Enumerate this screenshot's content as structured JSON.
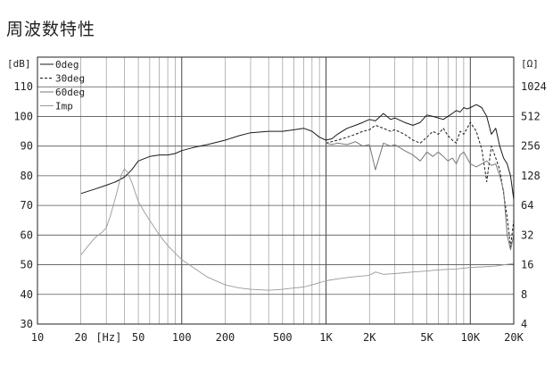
{
  "title": "周波数特性",
  "chart_data": {
    "type": "line",
    "title": "周波数特性",
    "x_scale": "log",
    "xlim": [
      10,
      20000
    ],
    "x_ticks": [
      10,
      20,
      50,
      100,
      200,
      500,
      1000,
      2000,
      5000,
      10000,
      20000
    ],
    "x_tick_labels": [
      "10",
      "20",
      "50",
      "100",
      "200",
      "500",
      "1K",
      "2K",
      "5K",
      "10K",
      "20K"
    ],
    "xlabel": "[Hz]",
    "ylabel_left": "[dB]",
    "ylim": [
      30,
      120
    ],
    "y_ticks": [
      30,
      40,
      50,
      60,
      70,
      80,
      90,
      100,
      110
    ],
    "ylabel_right": "[Ω]",
    "y2_scale": "log",
    "y2_ticks": [
      4,
      8,
      16,
      32,
      64,
      128,
      256,
      512,
      1024
    ],
    "grid": true,
    "legend_position": "top-left",
    "series": [
      {
        "name": "0deg",
        "axis": "left",
        "style": "solid",
        "color": "#1a1a1a",
        "x": [
          20,
          25,
          30,
          35,
          40,
          45,
          50,
          60,
          70,
          80,
          90,
          100,
          120,
          150,
          200,
          250,
          300,
          400,
          500,
          600,
          700,
          800,
          900,
          1000,
          1100,
          1200,
          1400,
          1600,
          1800,
          2000,
          2200,
          2500,
          2800,
          3000,
          3500,
          4000,
          4500,
          5000,
          5500,
          6000,
          6500,
          7000,
          7500,
          8000,
          8500,
          9000,
          9500,
          10000,
          11000,
          12000,
          13000,
          14000,
          15000,
          16000,
          17000,
          18000,
          19000,
          20000
        ],
        "y": [
          74,
          75.5,
          76.8,
          78,
          79.5,
          82,
          85,
          86.5,
          87,
          87,
          87.5,
          88.5,
          89.5,
          90.5,
          92,
          93.5,
          94.5,
          95,
          95,
          95.5,
          96,
          95,
          93,
          92,
          92.5,
          94,
          96,
          97,
          98,
          99,
          98.5,
          101,
          99,
          99.5,
          98,
          97,
          98,
          100.5,
          100,
          99.5,
          99,
          100,
          101,
          102,
          101.5,
          103,
          102.5,
          103,
          104,
          103,
          100,
          94,
          96,
          90,
          86,
          84,
          80,
          72
        ]
      },
      {
        "name": "30deg",
        "axis": "left",
        "style": "dashed",
        "color": "#1a1a1a",
        "x": [
          1000,
          1100,
          1200,
          1400,
          1600,
          1800,
          2000,
          2200,
          2500,
          2800,
          3000,
          3500,
          4000,
          4500,
          5000,
          5500,
          6000,
          6500,
          7000,
          7500,
          8000,
          8500,
          9000,
          9500,
          10000,
          11000,
          12000,
          13000,
          14000,
          15000,
          16000,
          17000,
          18000,
          19000,
          20000
        ],
        "y": [
          91,
          91.5,
          92,
          93,
          94,
          95,
          95.5,
          97,
          96,
          95,
          95.5,
          94,
          92,
          91,
          93,
          95,
          94,
          96,
          93.5,
          92,
          91,
          95,
          94,
          96,
          98,
          95,
          89,
          78,
          90,
          86,
          82,
          74,
          66,
          56,
          65
        ]
      },
      {
        "name": "60deg",
        "axis": "left",
        "style": "solid",
        "color": "#777777",
        "x": [
          1000,
          1100,
          1200,
          1400,
          1600,
          1800,
          2000,
          2200,
          2500,
          2800,
          3000,
          3500,
          4000,
          4500,
          5000,
          5500,
          6000,
          6500,
          7000,
          7500,
          8000,
          8500,
          9000,
          9500,
          10000,
          11000,
          12000,
          13000,
          14000,
          15000,
          16000,
          17000,
          18000,
          19000,
          20000
        ],
        "y": [
          91,
          90.5,
          91,
          90.5,
          91.5,
          90,
          90.5,
          82,
          91,
          90,
          90.5,
          88.5,
          87,
          85,
          88,
          86.5,
          88,
          86.5,
          85,
          86,
          84,
          87,
          88,
          86,
          84,
          83,
          84,
          85,
          83.5,
          84,
          80,
          75,
          60,
          55,
          60
        ]
      },
      {
        "name": "Imp",
        "axis": "right",
        "style": "solid",
        "color": "#999999",
        "x": [
          20,
          22,
          25,
          28,
          30,
          32,
          35,
          38,
          40,
          42,
          45,
          50,
          55,
          60,
          70,
          80,
          100,
          120,
          150,
          200,
          250,
          300,
          400,
          500,
          600,
          700,
          800,
          900,
          1000,
          1200,
          1500,
          2000,
          2200,
          2500,
          3000,
          4000,
          5000,
          6000,
          8000,
          10000,
          12000,
          15000,
          20000
        ],
        "y": [
          20,
          24,
          30,
          34,
          38,
          50,
          80,
          130,
          150,
          140,
          110,
          70,
          55,
          45,
          32,
          25,
          18,
          15,
          12,
          10,
          9.3,
          9,
          8.8,
          9,
          9.3,
          9.5,
          10,
          10.5,
          11,
          11.5,
          12,
          12.5,
          13.5,
          12.8,
          13,
          13.5,
          13.8,
          14.2,
          14.5,
          15,
          15.2,
          15.5,
          16.5
        ]
      }
    ]
  }
}
